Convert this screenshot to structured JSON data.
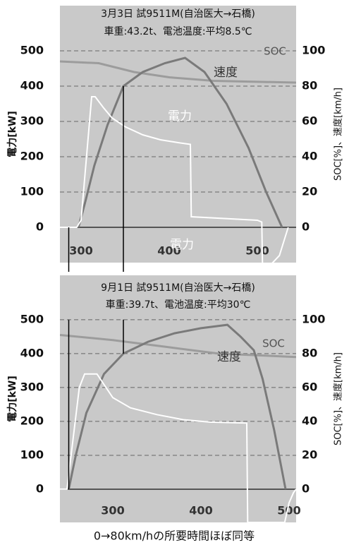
{
  "chart_data": [
    {
      "type": "line",
      "title": "3月3日 試9511M(自治医大→石橋)",
      "subtitle": "車重:43.2t、電池温度:平均8.5℃",
      "y_label": "電力[kW]",
      "y2_label": "SOC[%]、速度[km/h]",
      "xlim": [
        276,
        544
      ],
      "xticks": [
        300,
        400,
        500
      ],
      "ylim": [
        -100,
        628
      ],
      "yticks": [
        0,
        100,
        200,
        300,
        400,
        500
      ],
      "y2lim": [
        -20,
        125.6
      ],
      "y2ticks": [
        0,
        20,
        40,
        60,
        80,
        100
      ],
      "grid": true,
      "markers": [
        286,
        348
      ],
      "series": [
        {
          "name": "電力",
          "color": "#ffffff",
          "x": [
            276,
            295,
            300,
            312,
            316,
            325,
            335,
            350,
            370,
            390,
            410,
            424,
            425,
            500,
            505,
            506,
            525,
            530,
            535
          ],
          "values": [
            0,
            0,
            20,
            370,
            370,
            340,
            310,
            285,
            262,
            248,
            240,
            235,
            30,
            20,
            15,
            -130,
            -80,
            -40,
            0
          ]
        },
        {
          "name": "速度",
          "color": "#7a7a7a",
          "axis": "y2",
          "x": [
            297,
            305,
            315,
            330,
            348,
            370,
            395,
            418,
            440,
            465,
            490,
            510,
            528
          ],
          "values": [
            0,
            15,
            35,
            58,
            80,
            88,
            93,
            96,
            88,
            70,
            45,
            20,
            0
          ]
        },
        {
          "name": "SOC",
          "color": "#9c9c9c",
          "axis": "y2",
          "x": [
            276,
            320,
            360,
            400,
            450,
            544
          ],
          "values": [
            94,
            93,
            88,
            85,
            83,
            82
          ]
        }
      ]
    },
    {
      "type": "line",
      "title": "9月1日 試9511M(自治医大→石橋)",
      "subtitle": "車重:39.7t、電池温度:平均30℃",
      "y_label": "電力[kW]",
      "y2_label": "SOC[%]、速度[km/h]",
      "xlim": [
        240,
        508
      ],
      "xticks": [
        300,
        400,
        500
      ],
      "ylim": [
        -98,
        631
      ],
      "yticks": [
        0,
        100,
        200,
        300,
        400,
        500
      ],
      "y2lim": [
        -19.6,
        126.2
      ],
      "y2ticks": [
        0,
        20,
        40,
        60,
        80,
        100
      ],
      "grid": true,
      "markers": [
        250,
        312
      ],
      "series": [
        {
          "name": "電力",
          "color": "#ffffff",
          "x": [
            240,
            248,
            262,
            268,
            282,
            300,
            320,
            350,
            380,
            410,
            452,
            453,
            495,
            500,
            505,
            508
          ],
          "values": [
            0,
            0,
            300,
            340,
            340,
            270,
            240,
            220,
            205,
            198,
            195,
            -98,
            -98,
            -40,
            -10,
            0
          ]
        },
        {
          "name": "速度",
          "color": "#7a7a7a",
          "axis": "y2",
          "x": [
            250,
            258,
            270,
            290,
            312,
            340,
            370,
            400,
            430,
            445,
            460,
            470,
            483,
            496
          ],
          "values": [
            0,
            20,
            45,
            68,
            80,
            87,
            92,
            95,
            97,
            90,
            82,
            65,
            35,
            0
          ]
        },
        {
          "name": "SOC",
          "color": "#9c9c9c",
          "axis": "y2",
          "x": [
            240,
            300,
            360,
            420,
            508
          ],
          "values": [
            91,
            88,
            84,
            80,
            78
          ]
        }
      ]
    }
  ],
  "caption": "0→80km/hの所要時間ほぼ同等"
}
